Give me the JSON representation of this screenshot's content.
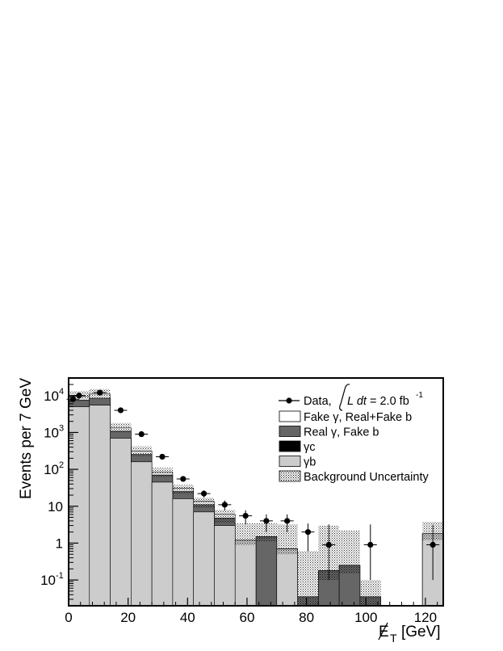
{
  "chart_data": {
    "type": "bar",
    "xlabel": "E̸T [GeV]",
    "xlabel_main": "E",
    "xlabel_sub": "T",
    "xlabel_units": "[GeV]",
    "ylabel": "Events per 7 GeV",
    "yscale": "log",
    "xlim": [
      0,
      126
    ],
    "ylim": [
      0.02,
      30000
    ],
    "x_ticks": [
      "0",
      "20",
      "40",
      "60",
      "80",
      "100",
      "120"
    ],
    "x_tick_values": [
      0,
      20,
      40,
      60,
      80,
      100,
      120
    ],
    "y_ticks": [
      {
        "value": 10000,
        "base": "10",
        "exp": "4"
      },
      {
        "value": 1000,
        "base": "10",
        "exp": "3"
      },
      {
        "value": 100,
        "base": "10",
        "exp": "2"
      },
      {
        "value": 10,
        "base": "10",
        "exp": ""
      },
      {
        "value": 1,
        "base": "1",
        "exp": ""
      },
      {
        "value": 0.1,
        "base": "10",
        "exp": "-1"
      }
    ],
    "bin_edges": [
      0,
      7,
      14,
      21,
      28,
      35,
      42,
      49,
      56,
      63,
      70,
      77,
      84,
      91,
      98,
      105,
      112,
      119,
      126
    ],
    "series": [
      {
        "name": "γb",
        "color": "#cccccc",
        "values": [
          5000,
          5500,
          700,
          160,
          45,
          16,
          7,
          3,
          1.2,
          0,
          0.7,
          0,
          0,
          0,
          0,
          0,
          0,
          1.8
        ]
      },
      {
        "name": "γc",
        "color": "#000000",
        "values": [
          0,
          0,
          0,
          0,
          0,
          0,
          0,
          0,
          0,
          0,
          0,
          0,
          0,
          0,
          0,
          0,
          0,
          0
        ]
      },
      {
        "name": "Real γ, Fake b",
        "color": "#666666",
        "values": [
          2500,
          3000,
          380,
          95,
          25,
          9,
          4,
          1.8,
          0,
          1.5,
          0,
          0.035,
          0.18,
          0.25,
          0.035,
          0,
          0,
          0
        ]
      },
      {
        "name": "Fake γ, Real+Fake b",
        "color": "#ffffff",
        "values": [
          2000,
          2500,
          250,
          60,
          15,
          6,
          2.5,
          1.2,
          0,
          0,
          0,
          0,
          0,
          0,
          0,
          0,
          0,
          0
        ]
      }
    ],
    "uncertainty": {
      "name": "Background Uncertainty",
      "low": [
        7000,
        8500,
        1000,
        230,
        62,
        22,
        9,
        3.5,
        0.9,
        1.1,
        0.5,
        0.02,
        0.1,
        0.15,
        0.02,
        0,
        0,
        1.2
      ],
      "high": [
        13000,
        15000,
        1800,
        420,
        110,
        38,
        17,
        8,
        3.5,
        3.5,
        3.2,
        0.6,
        3.0,
        2.2,
        0.1,
        0,
        0,
        3.8
      ]
    },
    "data_points": {
      "name": "Data",
      "x": [
        1.5,
        3.5,
        10.5,
        17.5,
        24.5,
        31.5,
        38.5,
        45.5,
        52.5,
        59.5,
        66.5,
        73.5,
        80.5,
        87.5,
        101.5,
        122.5
      ],
      "y": [
        8000,
        10000,
        12000,
        4000,
        900,
        220,
        55,
        22,
        11,
        5.5,
        4,
        4,
        2,
        0.9,
        0.9,
        0.9
      ],
      "yerr_low": [
        89,
        100,
        110,
        63,
        30,
        15,
        7.4,
        4.7,
        3.3,
        2.3,
        2,
        2,
        1.4,
        0.8,
        0.8,
        0.8
      ],
      "yerr_high": [
        89,
        100,
        110,
        63,
        30,
        15,
        7.4,
        4.7,
        3.3,
        2.3,
        2,
        2,
        1.4,
        2.3,
        2.3,
        2.3
      ]
    },
    "legend": {
      "position": "top-right",
      "data_label": "Data,",
      "lumi_italic": "L dt",
      "lumi_text": " = 2.0 fb",
      "lumi_exp": "-1",
      "entries": [
        {
          "label": "Fake γ, Real+Fake b",
          "fill": "#ffffff"
        },
        {
          "label": "Real γ, Fake b",
          "fill": "#666666"
        },
        {
          "label": "γc",
          "fill": "#000000"
        },
        {
          "label": "γb",
          "fill": "#cccccc"
        },
        {
          "label": "Background Uncertainty",
          "fill": "hatch"
        }
      ]
    }
  }
}
